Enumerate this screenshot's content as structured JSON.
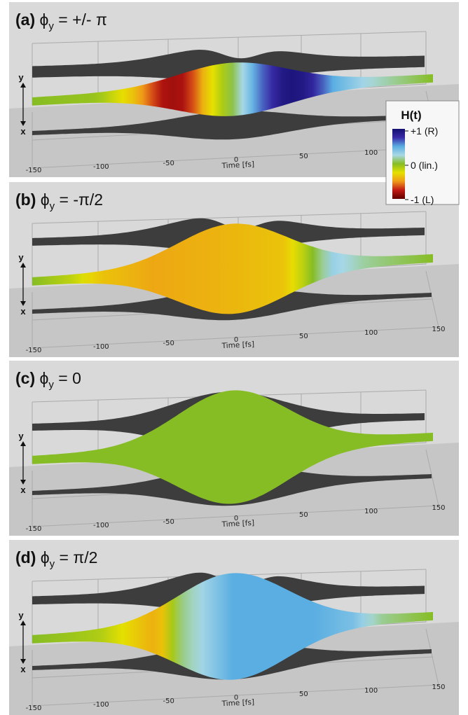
{
  "figure": {
    "legend": {
      "title": "H(t)",
      "labels": [
        "+1 (R)",
        "0 (lin.)",
        "-1 (L)"
      ],
      "values": [
        1,
        0,
        -1
      ],
      "colors": [
        "#140f6f",
        "#3a2ba8",
        "#5aaee2",
        "#a9d8e6",
        "#86bd24",
        "#e6e100",
        "#ef9918",
        "#c21814",
        "#5e0000"
      ]
    },
    "axis_letters": {
      "y": "y",
      "x": "x"
    },
    "colors": {
      "projection": "#3d3d3d",
      "background": "#d9d9d9",
      "floor": "#c6c6c6",
      "grid": "#aaaaaa"
    }
  },
  "chart_data": [
    {
      "type": "area",
      "panel_label": "(a)",
      "phase_label": "ϕ",
      "phase_sub": "y",
      "phase_value": " = +/- π",
      "xlabel": "Time [fs]",
      "x_ticks": [
        -150,
        -100,
        -50,
        0,
        50,
        100,
        150
      ],
      "xlim": [
        -150,
        150
      ],
      "color_scale_range": [
        -1,
        1
      ],
      "helicity": {
        "t": [
          -150,
          -100,
          -75,
          -50,
          -35,
          -20,
          0,
          20,
          40,
          55,
          75,
          100,
          150
        ],
        "H": [
          0,
          -0.05,
          -0.35,
          -0.85,
          -0.8,
          -0.35,
          0.05,
          0.6,
          0.95,
          0.9,
          0.5,
          0.25,
          0
        ]
      },
      "projections": [
        "y",
        "x"
      ]
    },
    {
      "type": "area",
      "panel_label": "(b)",
      "phase_label": "ϕ",
      "phase_sub": "y",
      "phase_value": " = -π/2",
      "xlabel": "Time [fs]",
      "x_ticks": [
        -150,
        -100,
        -50,
        0,
        50,
        100,
        150
      ],
      "xlim": [
        -150,
        150
      ],
      "color_scale_range": [
        -1,
        1
      ],
      "helicity": {
        "t": [
          -150,
          -120,
          -100,
          -60,
          0,
          40,
          55,
          75,
          100,
          150
        ],
        "H": [
          0,
          -0.15,
          -0.35,
          -0.45,
          -0.4,
          -0.35,
          -0.1,
          0.3,
          0.15,
          0
        ]
      },
      "projections": [
        "y",
        "x"
      ]
    },
    {
      "type": "area",
      "panel_label": "(c)",
      "phase_label": "ϕ",
      "phase_sub": "y",
      "phase_value": " = 0",
      "xlabel": "Time [fs]",
      "x_ticks": [
        -150,
        -100,
        -50,
        0,
        50,
        100,
        150
      ],
      "xlim": [
        -150,
        150
      ],
      "color_scale_range": [
        -1,
        1
      ],
      "helicity": {
        "t": [
          -150,
          0,
          150
        ],
        "H": [
          0,
          0,
          0
        ]
      },
      "projections": [
        "y",
        "x"
      ]
    },
    {
      "type": "area",
      "panel_label": "(d)",
      "phase_label": "ϕ",
      "phase_sub": "y",
      "phase_value": " = π/2",
      "xlabel": "Time [fs]",
      "x_ticks": [
        -150,
        -100,
        -50,
        0,
        50,
        100,
        150
      ],
      "xlim": [
        -150,
        150
      ],
      "color_scale_range": [
        -1,
        1
      ],
      "helicity": {
        "t": [
          -150,
          -100,
          -70,
          -55,
          -40,
          0,
          60,
          90,
          110,
          150
        ],
        "H": [
          0,
          -0.1,
          -0.35,
          -0.45,
          0.1,
          0.5,
          0.5,
          0.4,
          0.15,
          0
        ]
      },
      "projections": [
        "y",
        "x"
      ]
    }
  ]
}
